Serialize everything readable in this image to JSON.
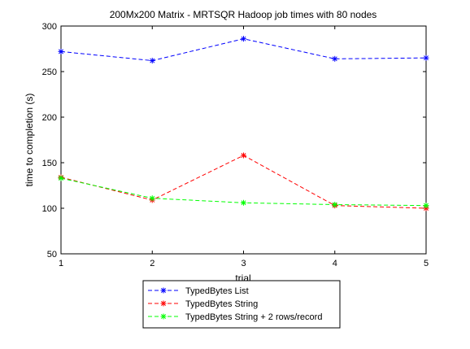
{
  "chart_data": {
    "type": "line",
    "title": "200Mx200 Matrix - MRTSQR Hadoop job times with 80 nodes",
    "xlabel": "trial",
    "ylabel": "time to completion (s)",
    "x": [
      1,
      2,
      3,
      4,
      5
    ],
    "xlim": [
      1,
      5
    ],
    "ylim": [
      50,
      300
    ],
    "xticks": [
      "1",
      "2",
      "3",
      "4",
      "5"
    ],
    "yticks": [
      "50",
      "100",
      "150",
      "200",
      "250",
      "300"
    ],
    "grid": false,
    "legend_position": "below",
    "series": [
      {
        "name": "TypedBytes List",
        "color": "#0000ff",
        "values": [
          272,
          262,
          286,
          264,
          265
        ]
      },
      {
        "name": "TypedBytes String",
        "color": "#ff0000",
        "values": [
          134,
          109,
          158,
          103,
          100
        ]
      },
      {
        "name": "TypedBytes String + 2 rows/record",
        "color": "#00ff00",
        "values": [
          133,
          111,
          106,
          104,
          103
        ]
      }
    ]
  }
}
